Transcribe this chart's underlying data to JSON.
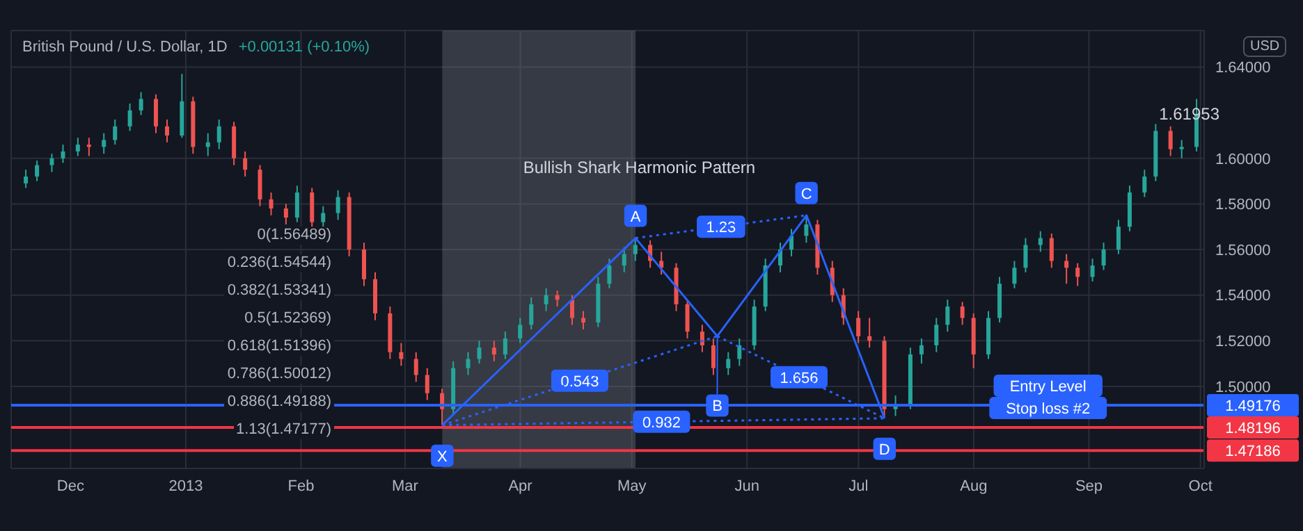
{
  "chart_data": {
    "type": "candlestick",
    "title": "British Pound / U.S. Dollar, 1D",
    "subtitle": "+0.00131 (+0.10%)",
    "ylabel": "USD",
    "x": [
      "2012-11-19",
      "2012-11-22",
      "2012-11-26",
      "2012-11-29",
      "2012-12-03",
      "2012-12-06",
      "2012-12-10",
      "2012-12-13",
      "2012-12-17",
      "2012-12-20",
      "2012-12-24",
      "2012-12-27",
      "2012-12-31",
      "2013-01-03",
      "2013-01-07",
      "2013-01-10",
      "2013-01-14",
      "2013-01-17",
      "2013-01-21",
      "2013-01-24",
      "2013-01-28",
      "2013-01-31",
      "2013-02-04",
      "2013-02-07",
      "2013-02-11",
      "2013-02-14",
      "2013-02-18",
      "2013-02-21",
      "2013-02-25",
      "2013-02-28",
      "2013-03-04",
      "2013-03-07",
      "2013-03-11",
      "2013-03-14",
      "2013-03-18",
      "2013-03-21",
      "2013-03-25",
      "2013-03-28",
      "2013-04-01",
      "2013-04-04",
      "2013-04-08",
      "2013-04-11",
      "2013-04-15",
      "2013-04-18",
      "2013-04-22",
      "2013-04-25",
      "2013-04-29",
      "2013-05-02",
      "2013-05-06",
      "2013-05-09",
      "2013-05-13",
      "2013-05-16",
      "2013-05-20",
      "2013-05-23",
      "2013-05-27",
      "2013-05-30",
      "2013-06-03",
      "2013-06-06",
      "2013-06-10",
      "2013-06-13",
      "2013-06-17",
      "2013-06-20",
      "2013-06-24",
      "2013-06-27",
      "2013-07-01",
      "2013-07-04",
      "2013-07-08",
      "2013-07-11",
      "2013-07-15",
      "2013-07-18",
      "2013-07-22",
      "2013-07-25",
      "2013-07-29",
      "2013-08-01",
      "2013-08-05",
      "2013-08-08",
      "2013-08-12",
      "2013-08-15",
      "2013-08-19",
      "2013-08-22",
      "2013-08-26",
      "2013-08-29",
      "2013-09-02",
      "2013-09-05",
      "2013-09-09",
      "2013-09-12",
      "2013-09-16",
      "2013-09-19",
      "2013-09-23",
      "2013-09-26",
      "2013-09-30"
    ],
    "ohlc": [
      [
        1.589,
        1.595,
        1.587,
        1.592
      ],
      [
        1.592,
        1.599,
        1.59,
        1.597
      ],
      [
        1.597,
        1.602,
        1.594,
        1.6
      ],
      [
        1.6,
        1.606,
        1.598,
        1.603
      ],
      [
        1.603,
        1.609,
        1.601,
        1.606
      ],
      [
        1.606,
        1.609,
        1.601,
        1.605
      ],
      [
        1.605,
        1.611,
        1.602,
        1.608
      ],
      [
        1.608,
        1.617,
        1.606,
        1.614
      ],
      [
        1.614,
        1.624,
        1.612,
        1.621
      ],
      [
        1.621,
        1.629,
        1.619,
        1.626
      ],
      [
        1.626,
        1.628,
        1.611,
        1.614
      ],
      [
        1.614,
        1.617,
        1.607,
        1.61
      ],
      [
        1.61,
        1.637,
        1.609,
        1.625
      ],
      [
        1.625,
        1.627,
        1.602,
        1.605
      ],
      [
        1.605,
        1.611,
        1.601,
        1.607
      ],
      [
        1.607,
        1.617,
        1.604,
        1.614
      ],
      [
        1.614,
        1.616,
        1.597,
        1.6
      ],
      [
        1.6,
        1.603,
        1.592,
        1.595
      ],
      [
        1.595,
        1.597,
        1.579,
        1.582
      ],
      [
        1.582,
        1.585,
        1.575,
        1.578
      ],
      [
        1.578,
        1.58,
        1.571,
        1.574
      ],
      [
        1.574,
        1.588,
        1.572,
        1.585
      ],
      [
        1.585,
        1.587,
        1.569,
        1.572
      ],
      [
        1.572,
        1.579,
        1.569,
        1.576
      ],
      [
        1.576,
        1.586,
        1.573,
        1.583
      ],
      [
        1.583,
        1.585,
        1.557,
        1.56
      ],
      [
        1.56,
        1.563,
        1.544,
        1.547
      ],
      [
        1.547,
        1.55,
        1.529,
        1.532
      ],
      [
        1.532,
        1.535,
        1.512,
        1.515
      ],
      [
        1.515,
        1.519,
        1.509,
        1.512
      ],
      [
        1.512,
        1.515,
        1.502,
        1.505
      ],
      [
        1.505,
        1.508,
        1.494,
        1.497
      ],
      [
        1.497,
        1.499,
        1.483,
        1.49
      ],
      [
        1.49,
        1.511,
        1.488,
        1.508
      ],
      [
        1.508,
        1.515,
        1.505,
        1.512
      ],
      [
        1.512,
        1.52,
        1.51,
        1.517
      ],
      [
        1.517,
        1.52,
        1.511,
        1.514
      ],
      [
        1.514,
        1.524,
        1.512,
        1.521
      ],
      [
        1.521,
        1.53,
        1.519,
        1.527
      ],
      [
        1.527,
        1.539,
        1.525,
        1.536
      ],
      [
        1.536,
        1.543,
        1.533,
        1.54
      ],
      [
        1.54,
        1.542,
        1.535,
        1.538
      ],
      [
        1.538,
        1.54,
        1.527,
        1.53
      ],
      [
        1.53,
        1.533,
        1.525,
        1.528
      ],
      [
        1.528,
        1.548,
        1.526,
        1.545
      ],
      [
        1.545,
        1.556,
        1.543,
        1.553
      ],
      [
        1.553,
        1.561,
        1.55,
        1.558
      ],
      [
        1.558,
        1.565,
        1.555,
        1.562
      ],
      [
        1.562,
        1.564,
        1.552,
        1.555
      ],
      [
        1.555,
        1.559,
        1.549,
        1.552
      ],
      [
        1.552,
        1.554,
        1.533,
        1.536
      ],
      [
        1.536,
        1.538,
        1.521,
        1.524
      ],
      [
        1.524,
        1.527,
        1.515,
        1.518
      ],
      [
        1.518,
        1.521,
        1.505,
        1.508
      ],
      [
        1.508,
        1.515,
        1.505,
        1.512
      ],
      [
        1.512,
        1.521,
        1.509,
        1.518
      ],
      [
        1.518,
        1.538,
        1.516,
        1.535
      ],
      [
        1.535,
        1.556,
        1.533,
        1.553
      ],
      [
        1.553,
        1.563,
        1.55,
        1.56
      ],
      [
        1.56,
        1.569,
        1.557,
        1.566
      ],
      [
        1.566,
        1.575,
        1.563,
        1.571
      ],
      [
        1.571,
        1.573,
        1.549,
        1.552
      ],
      [
        1.552,
        1.555,
        1.537,
        1.54
      ],
      [
        1.54,
        1.543,
        1.527,
        1.53
      ],
      [
        1.53,
        1.533,
        1.519,
        1.522
      ],
      [
        1.522,
        1.53,
        1.517,
        1.52
      ],
      [
        1.52,
        1.522,
        1.486,
        1.49
      ],
      [
        1.49,
        1.496,
        1.487,
        1.492
      ],
      [
        1.492,
        1.517,
        1.49,
        1.514
      ],
      [
        1.514,
        1.521,
        1.51,
        1.518
      ],
      [
        1.518,
        1.53,
        1.515,
        1.527
      ],
      [
        1.527,
        1.538,
        1.524,
        1.535
      ],
      [
        1.535,
        1.537,
        1.527,
        1.53
      ],
      [
        1.53,
        1.532,
        1.508,
        1.514
      ],
      [
        1.514,
        1.533,
        1.512,
        1.53
      ],
      [
        1.53,
        1.548,
        1.528,
        1.545
      ],
      [
        1.545,
        1.555,
        1.543,
        1.552
      ],
      [
        1.552,
        1.565,
        1.55,
        1.562
      ],
      [
        1.562,
        1.568,
        1.559,
        1.565
      ],
      [
        1.565,
        1.567,
        1.552,
        1.555
      ],
      [
        1.555,
        1.558,
        1.545,
        1.552
      ],
      [
        1.552,
        1.554,
        1.544,
        1.548
      ],
      [
        1.548,
        1.556,
        1.546,
        1.553
      ],
      [
        1.553,
        1.563,
        1.551,
        1.56
      ],
      [
        1.56,
        1.573,
        1.558,
        1.57
      ],
      [
        1.57,
        1.588,
        1.568,
        1.585
      ],
      [
        1.585,
        1.595,
        1.583,
        1.592
      ],
      [
        1.592,
        1.615,
        1.59,
        1.612
      ],
      [
        1.612,
        1.614,
        1.601,
        1.604
      ],
      [
        1.604,
        1.608,
        1.6,
        1.605
      ],
      [
        1.605,
        1.626,
        1.603,
        1.6195
      ]
    ],
    "series": [
      {
        "type": "line",
        "color": "#2962ff",
        "x": [
          "2013-03-11",
          "2013-05-02",
          "2013-05-24",
          "2013-06-17",
          "2013-07-08"
        ],
        "values": [
          1.483,
          1.565,
          1.522,
          1.575,
          1.486
        ]
      },
      {
        "type": "line",
        "color": "#2962ff",
        "line_style": "dotted",
        "x": [
          "2013-03-11",
          "2013-05-24"
        ],
        "values": [
          1.483,
          1.522
        ]
      },
      {
        "type": "line",
        "color": "#2962ff",
        "line_style": "dotted",
        "x": [
          "2013-05-02",
          "2013-06-17"
        ],
        "values": [
          1.565,
          1.575
        ]
      },
      {
        "type": "line",
        "color": "#2962ff",
        "line_style": "dotted",
        "x": [
          "2013-05-24",
          "2013-07-08"
        ],
        "values": [
          1.522,
          1.486
        ]
      },
      {
        "type": "line",
        "color": "#2962ff",
        "line_style": "dotted",
        "x": [
          "2013-03-11",
          "2013-07-08"
        ],
        "values": [
          1.483,
          1.486
        ]
      }
    ],
    "xlim": [
      "2012-11-15",
      "2013-10-02"
    ],
    "xticks": [
      {
        "value": "2012-12-01",
        "label": "Dec"
      },
      {
        "value": "2013-01-01",
        "label": "2013"
      },
      {
        "value": "2013-02-01",
        "label": "Feb"
      },
      {
        "value": "2013-03-01",
        "label": "Mar"
      },
      {
        "value": "2013-04-01",
        "label": "Apr"
      },
      {
        "value": "2013-05-01",
        "label": "May"
      },
      {
        "value": "2013-06-01",
        "label": "Jun"
      },
      {
        "value": "2013-07-01",
        "label": "Jul"
      },
      {
        "value": "2013-08-01",
        "label": "Aug"
      },
      {
        "value": "2013-09-01",
        "label": "Sep"
      },
      {
        "value": "2013-10-01",
        "label": "Oct"
      }
    ],
    "ylim": [
      1.464,
      1.656
    ],
    "yticks": [
      {
        "value": 1.5,
        "label": "1.50000"
      },
      {
        "value": 1.52,
        "label": "1.52000"
      },
      {
        "value": 1.54,
        "label": "1.54000"
      },
      {
        "value": 1.56,
        "label": "1.56000"
      },
      {
        "value": 1.58,
        "label": "1.58000"
      },
      {
        "value": 1.6,
        "label": "1.60000"
      },
      {
        "value": 1.64,
        "label": "1.64000"
      }
    ],
    "grid": true,
    "marker": "none",
    "ref_lines": [
      {
        "axis": "y",
        "value": 1.49176,
        "label": "1.49176",
        "color": "#2962ff"
      },
      {
        "axis": "y",
        "value": 1.48196,
        "label": "1.48196",
        "color": "#f23645"
      },
      {
        "axis": "y",
        "value": 1.47186,
        "label": "1.47186",
        "color": "#f23645"
      }
    ],
    "bands": [
      {
        "axis": "x",
        "from": "2013-03-11",
        "to": "2013-05-02",
        "color": "#787b86"
      }
    ],
    "annotations": [
      {
        "text": "Bullish Shark Harmonic Pattern",
        "x": "2013-05-03",
        "y": 1.596
      },
      "0(1.56489)",
      "0.236(1.54544)",
      "0.382(1.53341)",
      "0.5(1.52369)",
      "0.618(1.51396)",
      "0.786(1.50012)",
      "0.886(1.49188)",
      "1.13(1.47177)",
      {
        "text": "X",
        "x": "2013-03-11",
        "y": 1.483
      },
      {
        "text": "A",
        "x": "2013-05-02",
        "y": 1.565
      },
      {
        "text": "B",
        "x": "2013-05-24",
        "y": 1.522
      },
      {
        "text": "C",
        "x": "2013-06-17",
        "y": 1.575
      },
      {
        "text": "D",
        "x": "2013-07-08",
        "y": 1.486
      },
      {
        "text": "1.23",
        "x": "2013-05-25",
        "y": 1.57
      },
      {
        "text": "0.543",
        "x": "2013-04-17",
        "y": 1.5025
      },
      {
        "text": "1.656",
        "x": "2013-06-15",
        "y": 1.504
      },
      {
        "text": "0.982",
        "x": "2013-05-09",
        "y": 1.4845
      },
      {
        "text": "Entry Level",
        "x": "2013-08-21",
        "y": 1.49176
      },
      {
        "text": "Stop loss #2",
        "x": "2013-08-21",
        "y": 1.48196
      },
      {
        "text": "1.61953",
        "x": "2013-09-28",
        "y": 1.61953
      }
    ]
  }
}
